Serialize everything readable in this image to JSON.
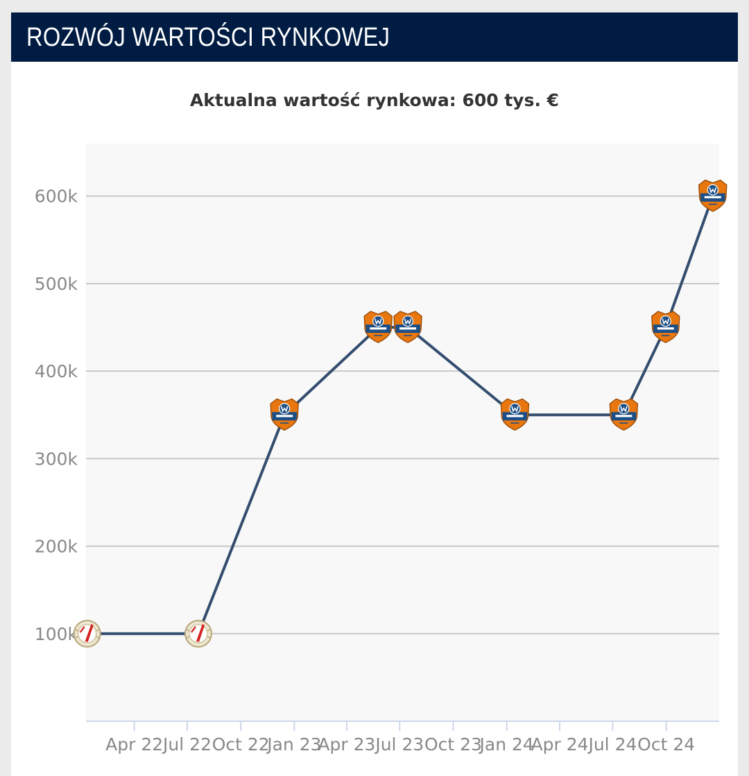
{
  "header": {
    "title": "ROZWÓJ WARTOŚCI RYNKOWEJ"
  },
  "summary": {
    "current_value_label": "Aktualna wartość rynkowa: 600 tys. €"
  },
  "colors": {
    "header_bg": "#001c42",
    "line": "#334d6e",
    "plot_bg": "#f8f8f8",
    "grid": "#c8c8c8",
    "badge_orange": "#e8770f",
    "badge_blue": "#1d4f86",
    "badge_cream": "#ece5cf",
    "badge_red": "#d42020"
  },
  "chart_data": {
    "type": "line",
    "title": "",
    "xlabel": "",
    "ylabel": "",
    "x_tick_labels": [
      "Apr 22",
      "Jul 22",
      "Oct 22",
      "Jan 23",
      "Apr 23",
      "Jul 23",
      "Oct 23",
      "Jan 24",
      "Apr 24",
      "Jul 24",
      "Oct 24"
    ],
    "y_tick_labels": [
      "100k",
      "200k",
      "300k",
      "400k",
      "500k",
      "600k"
    ],
    "y_ticks": [
      100000,
      200000,
      300000,
      400000,
      500000,
      600000
    ],
    "ylim": [
      0,
      660000
    ],
    "xlim": [
      "2022-01-08",
      "2024-12-31"
    ],
    "grid": true,
    "legend": "none",
    "series": [
      {
        "values": [
          {
            "date": "2022-01-10",
            "value": 100000,
            "club_icon": "widzew-crest-icon"
          },
          {
            "date": "2022-07-20",
            "value": 100000,
            "club_icon": "widzew-crest-icon"
          },
          {
            "date": "2022-12-15",
            "value": 350000,
            "club_icon": "bruk-bet-crest-icon"
          },
          {
            "date": "2023-05-25",
            "value": 450000,
            "club_icon": "bruk-bet-crest-icon"
          },
          {
            "date": "2023-07-15",
            "value": 450000,
            "club_icon": "bruk-bet-crest-icon"
          },
          {
            "date": "2024-01-15",
            "value": 350000,
            "club_icon": "bruk-bet-crest-icon"
          },
          {
            "date": "2024-07-20",
            "value": 350000,
            "club_icon": "bruk-bet-crest-icon"
          },
          {
            "date": "2024-09-30",
            "value": 450000,
            "club_icon": "bruk-bet-crest-icon"
          },
          {
            "date": "2024-12-20",
            "value": 600000,
            "club_icon": "bruk-bet-crest-icon"
          }
        ]
      }
    ]
  }
}
